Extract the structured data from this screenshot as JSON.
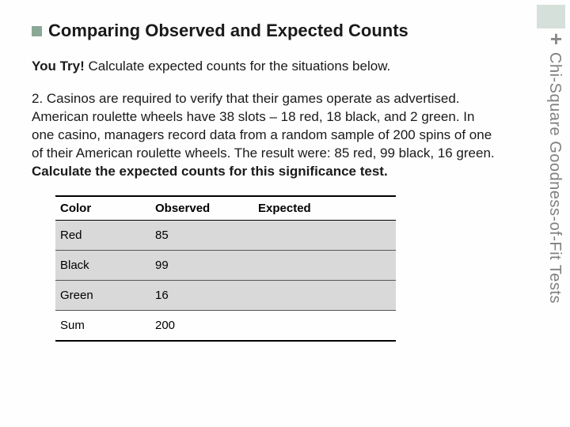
{
  "sidebar": {
    "plus": "+",
    "vertical_title": "Chi-Square Goodness-of-Fit Tests"
  },
  "title": {
    "first_word": "Comparing",
    "rest": " Observed and Expected Counts"
  },
  "subtitle": {
    "bold": "You Try!",
    "rest": " Calculate expected counts for the situations below."
  },
  "paragraph": {
    "part1": "2. Casinos are required to verify that their games operate as advertised. American roulette wheels have 38 slots – 18 red, 18 black, and 2 green. In one casino, managers record data from a random sample of 200 spins of one of their American roulette wheels. The result were: 85 red, 99 black, 16 green. ",
    "bold": "Calculate the expected counts for this significance test."
  },
  "table": {
    "headers": {
      "c1": "Color",
      "c2": "Observed",
      "c3": "Expected"
    },
    "rows": [
      {
        "c1": "Red",
        "c2": "85",
        "c3": ""
      },
      {
        "c1": "Black",
        "c2": "99",
        "c3": ""
      },
      {
        "c1": "Green",
        "c2": "16",
        "c3": ""
      },
      {
        "c1": "Sum",
        "c2": "200",
        "c3": ""
      }
    ]
  }
}
